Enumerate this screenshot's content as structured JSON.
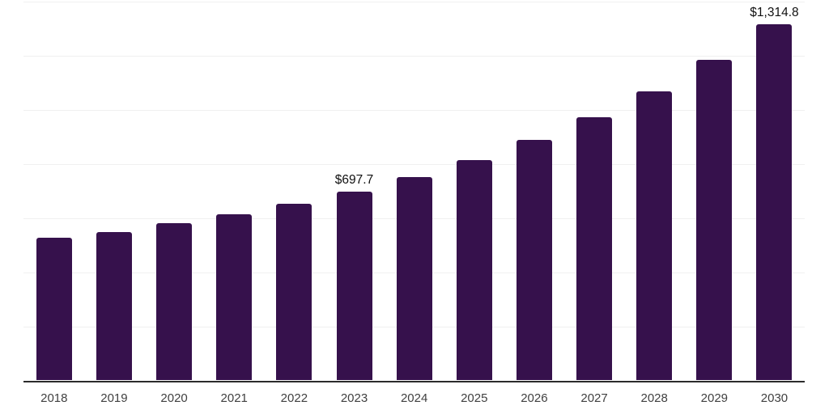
{
  "chart_data": {
    "type": "bar",
    "title": "",
    "xlabel": "",
    "ylabel": "",
    "categories": [
      "2018",
      "2019",
      "2020",
      "2021",
      "2022",
      "2023",
      "2024",
      "2025",
      "2026",
      "2027",
      "2028",
      "2029",
      "2030"
    ],
    "values": [
      527,
      549,
      581,
      613,
      653,
      697.7,
      751,
      813,
      887,
      971,
      1068,
      1183,
      1314.8
    ],
    "data_labels": {
      "2023": "$697.7",
      "2030": "$1,314.8"
    },
    "ylim": [
      0,
      1400
    ],
    "gridline_step": 200,
    "grid": true,
    "legend_position": "none",
    "y_tick_labels_visible": false,
    "colors": {
      "bar": "#36114C",
      "gridline": "#f0f0f0",
      "axis_line": "#2b2b2b",
      "tick_label": "#404040",
      "data_label": "#111111",
      "background": "#ffffff"
    }
  }
}
